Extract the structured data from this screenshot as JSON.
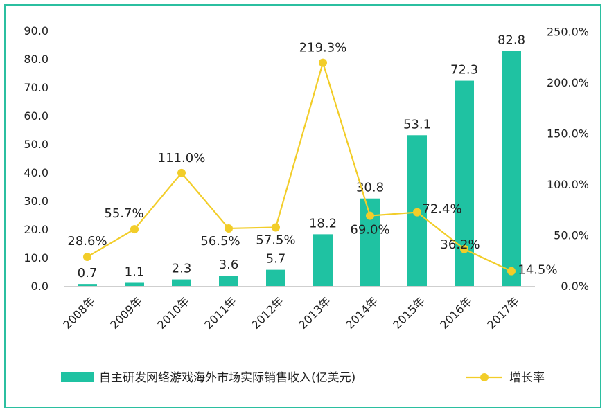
{
  "chart_data": {
    "type": "bar+line",
    "categories": [
      "2008年",
      "2009年",
      "2010年",
      "2011年",
      "2012年",
      "2013年",
      "2014年",
      "2015年",
      "2016年",
      "2017年"
    ],
    "series": [
      {
        "name": "自主研发网络游戏海外市场实际销售收入(亿美元)",
        "type": "bar",
        "axis": "left",
        "values": [
          0.7,
          1.1,
          2.3,
          3.6,
          5.7,
          18.2,
          30.8,
          53.1,
          72.3,
          82.8
        ],
        "labels": [
          "0.7",
          "1.1",
          "2.3",
          "3.6",
          "5.7",
          "18.2",
          "30.8",
          "53.1",
          "72.3",
          "82.8"
        ]
      },
      {
        "name": "增长率",
        "type": "line",
        "axis": "right",
        "values": [
          28.6,
          55.7,
          111.0,
          56.5,
          57.5,
          219.3,
          69.0,
          72.4,
          36.2,
          14.5
        ],
        "labels": [
          "28.6%",
          "55.7%",
          "111.0%",
          "56.5%",
          "57.5%",
          "219.3%",
          "69.0%",
          "72.4%",
          "36.2%",
          "14.5%"
        ]
      }
    ],
    "ylim_left": [
      0,
      90
    ],
    "yticks_left": [
      "0.0",
      "10.0",
      "20.0",
      "30.0",
      "40.0",
      "50.0",
      "60.0",
      "70.0",
      "80.0",
      "90.0"
    ],
    "ylim_right": [
      0,
      250
    ],
    "yticks_right": [
      "0.0%",
      "50.0%",
      "100.0%",
      "150.0%",
      "200.0%",
      "250.0%"
    ],
    "grid": false,
    "legend": "bottom",
    "colors": {
      "bar": "#1fc2a2",
      "line": "#f2cd29",
      "frame": "#2bbfa0"
    }
  }
}
